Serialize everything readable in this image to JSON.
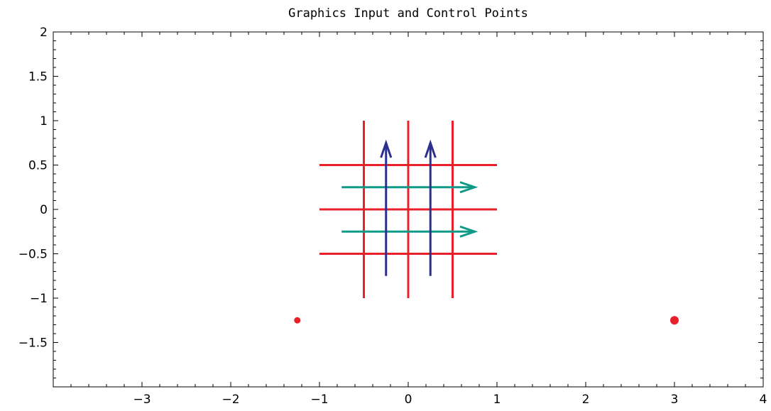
{
  "chart_data": {
    "type": "line",
    "title": "Graphics Input and Control Points",
    "xlabel": "",
    "ylabel": "",
    "xlim": [
      -4,
      4
    ],
    "ylim": [
      -2,
      2
    ],
    "grid": false,
    "x_ticks": [
      -3,
      -2,
      -1,
      0,
      1,
      2,
      3,
      4
    ],
    "x_tick_labels": [
      "-3",
      "-2",
      "-1",
      "0",
      "1",
      "2",
      "3",
      "4"
    ],
    "y_ticks": [
      2,
      1.5,
      1,
      0.5,
      0,
      -0.5,
      -1,
      -1.5
    ],
    "y_tick_labels": [
      "2",
      "1.5",
      "1",
      "0.5",
      "0",
      "-0.5",
      "-1",
      "-1.5"
    ],
    "colors": {
      "grid_lines": "#e8202a",
      "vertical_arrows": "#2b2f8f",
      "horizontal_arrows": "#0f9a88",
      "points": "#e8202a"
    },
    "line_segments": [
      {
        "x": [
          -1,
          1
        ],
        "y": [
          0.5,
          0.5
        ]
      },
      {
        "x": [
          -1,
          1
        ],
        "y": [
          0,
          0
        ]
      },
      {
        "x": [
          -1,
          1
        ],
        "y": [
          -0.5,
          -0.5
        ]
      },
      {
        "x": [
          -0.5,
          -0.5
        ],
        "y": [
          -1,
          1
        ]
      },
      {
        "x": [
          0,
          0
        ],
        "y": [
          -1,
          1
        ]
      },
      {
        "x": [
          0.5,
          0.5
        ],
        "y": [
          -1,
          1
        ]
      }
    ],
    "vertical_arrows": [
      {
        "x": [
          -0.25,
          -0.25
        ],
        "y": [
          -0.75,
          0.75
        ]
      },
      {
        "x": [
          0.25,
          0.25
        ],
        "y": [
          -0.75,
          0.75
        ]
      }
    ],
    "horizontal_arrows": [
      {
        "x": [
          -0.75,
          0.75
        ],
        "y": [
          0.25,
          0.25
        ]
      },
      {
        "x": [
          -0.75,
          0.75
        ],
        "y": [
          -0.25,
          -0.25
        ]
      }
    ],
    "points": [
      {
        "x": -1.25,
        "y": -1.25,
        "size": "small"
      },
      {
        "x": 3,
        "y": -1.25,
        "size": "large"
      }
    ]
  }
}
